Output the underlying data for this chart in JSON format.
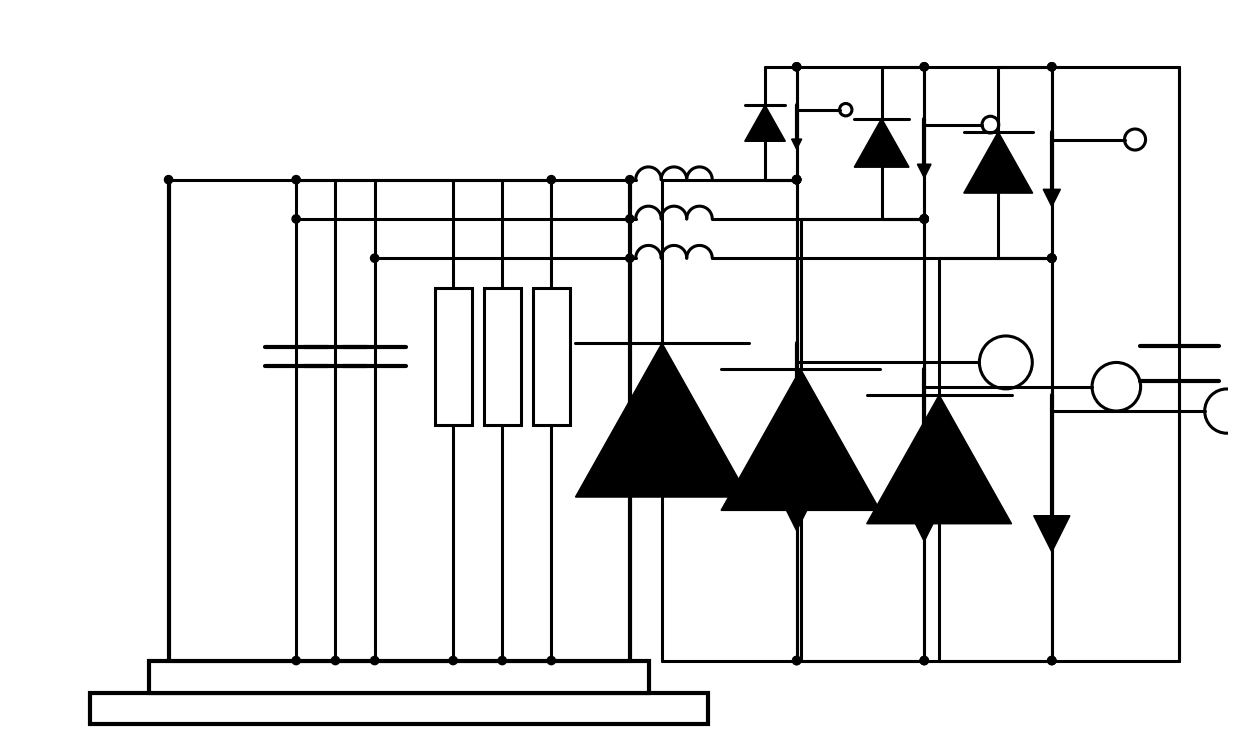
{
  "background": "#ffffff",
  "line_color": "#000000",
  "lw": 2.2,
  "lw_thick": 3.0,
  "figsize": [
    12.4,
    7.46
  ],
  "dpi": 100
}
